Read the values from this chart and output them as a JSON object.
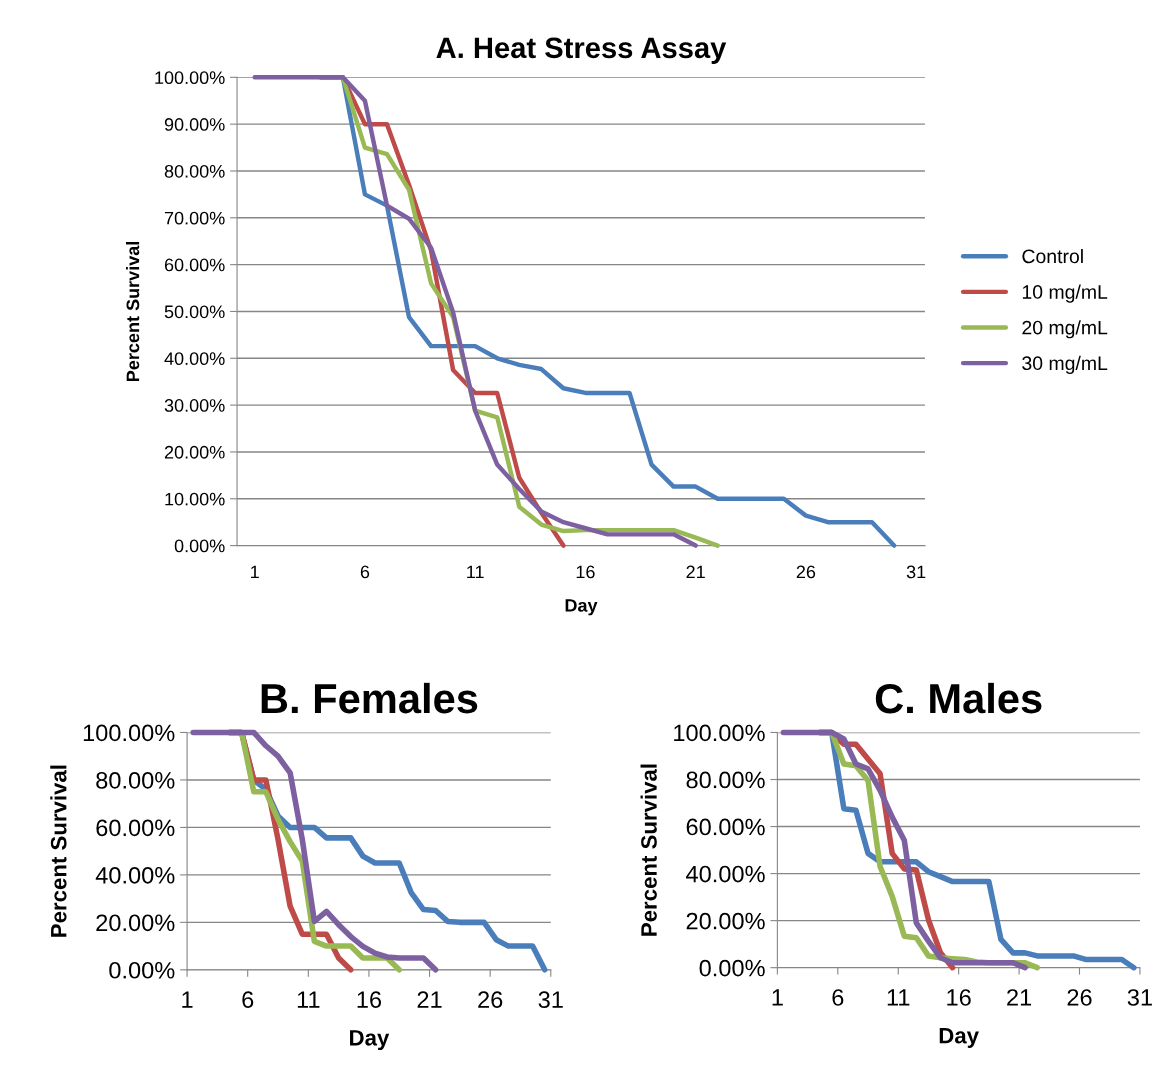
{
  "chart_data": [
    {
      "type": "line",
      "title": "A. Heat Stress Assay",
      "xlabel": "Day",
      "ylabel": "Percent Survival",
      "legend": "right",
      "grid": "y",
      "marker": "none",
      "line_style": "solid",
      "xlim": [
        0.2,
        31.4
      ],
      "xticks": [
        1,
        6,
        11,
        16,
        21,
        26,
        31
      ],
      "ylim": [
        0,
        100
      ],
      "yticks": [
        {
          "value": 0,
          "label": "0.00%"
        },
        {
          "value": 10,
          "label": "10.00%"
        },
        {
          "value": 20,
          "label": "20.00%"
        },
        {
          "value": 30,
          "label": "30.00%"
        },
        {
          "value": 40,
          "label": "40.00%"
        },
        {
          "value": 50,
          "label": "50.00%"
        },
        {
          "value": 60,
          "label": "60.00%"
        },
        {
          "value": 70,
          "label": "70.00%"
        },
        {
          "value": 80,
          "label": "80.00%"
        },
        {
          "value": 90,
          "label": "90.00%"
        },
        {
          "value": 100,
          "label": "100.00%"
        }
      ],
      "x": [
        1,
        2,
        3,
        4,
        5,
        6,
        7,
        8,
        9,
        10,
        11,
        12,
        13,
        14,
        15,
        16,
        17,
        18,
        19,
        20,
        21,
        22,
        23,
        24,
        25,
        26,
        27,
        28,
        29,
        30
      ],
      "series": [
        {
          "name": "Control",
          "color": "#4a7ebb",
          "values": [
            null,
            null,
            null,
            100,
            100,
            75,
            72.6,
            48.8,
            42.6,
            42.6,
            42.6,
            40,
            38.6,
            37.7,
            33.6,
            32.6,
            32.6,
            32.6,
            17.3,
            12.6,
            12.6,
            10,
            10,
            10,
            10,
            6.4,
            5,
            5,
            5,
            0
          ]
        },
        {
          "name": "10 mg/mL",
          "color": "#be4b48",
          "values": [
            null,
            null,
            null,
            100,
            100,
            90,
            90,
            77,
            63,
            37.5,
            32.6,
            32.6,
            14.5,
            7,
            0,
            null,
            null,
            null,
            null,
            null,
            null,
            null,
            null,
            null,
            null,
            null,
            null,
            null,
            null,
            null
          ]
        },
        {
          "name": "20 mg/mL",
          "color": "#98b954",
          "values": [
            null,
            null,
            null,
            100,
            100,
            85,
            83.6,
            76,
            56,
            48.8,
            28.8,
            27.4,
            8.3,
            4.5,
            3.1,
            3.3,
            3.3,
            3.3,
            3.3,
            3.3,
            1.7,
            0,
            null,
            null,
            null,
            null,
            null,
            null,
            null,
            null
          ]
        },
        {
          "name": "30 mg/mL",
          "color": "#7d60a0",
          "values": [
            100,
            100,
            100,
            100,
            100,
            95,
            72.6,
            69.8,
            63.6,
            49.8,
            28.8,
            17.3,
            12.1,
            7.3,
            5,
            3.7,
            2.4,
            2.4,
            2.4,
            2.4,
            0,
            null,
            null,
            null,
            null,
            null,
            null,
            null,
            null,
            null
          ]
        }
      ]
    },
    {
      "type": "line",
      "title": "B. Females",
      "xlabel": "Day",
      "ylabel": "Percent Survival",
      "grid": "y",
      "marker": "none",
      "line_style": "solid",
      "xlim": [
        1,
        31
      ],
      "xticks": [
        1,
        6,
        11,
        16,
        21,
        26,
        31
      ],
      "ylim": [
        0,
        100
      ],
      "yticks": [
        {
          "value": 0,
          "label": "0.00%"
        },
        {
          "value": 20,
          "label": "20.00%"
        },
        {
          "value": 40,
          "label": "40.00%"
        },
        {
          "value": 60,
          "label": "60.00%"
        },
        {
          "value": 80,
          "label": "80.00%"
        },
        {
          "value": 100,
          "label": "100.00%"
        }
      ],
      "x": [
        1.5,
        2.5,
        3.5,
        4.5,
        5.5,
        6.5,
        7.5,
        8.5,
        9.5,
        10.5,
        11.5,
        12.5,
        13.5,
        14.5,
        15.5,
        16.5,
        17.5,
        18.5,
        19.5,
        20.5,
        21.5,
        22.5,
        23.5,
        24.5,
        25.5,
        26.5,
        27.5,
        28.5,
        29.5,
        30.5
      ],
      "series": [
        {
          "color": "#4a7ebb",
          "values": [
            null,
            null,
            null,
            100,
            100,
            80,
            76,
            64.8,
            60,
            60,
            60,
            55.6,
            55.6,
            55.6,
            47.9,
            45,
            45,
            45,
            32.4,
            25.4,
            25,
            20.4,
            20,
            20,
            20,
            12.7,
            10,
            10,
            10,
            0
          ]
        },
        {
          "color": "#be4b48",
          "values": [
            null,
            null,
            null,
            100,
            100,
            80,
            80,
            55,
            26.8,
            15,
            15,
            15,
            5,
            0,
            null,
            null,
            null,
            null,
            null,
            null,
            null,
            null,
            null,
            null,
            null,
            null,
            null,
            null,
            null,
            null
          ]
        },
        {
          "color": "#98b954",
          "values": [
            null,
            null,
            null,
            100,
            100,
            75,
            75,
            63.4,
            54,
            45.8,
            12,
            10,
            10,
            10,
            5,
            5,
            5,
            0,
            null,
            null,
            null,
            null,
            null,
            null,
            null,
            null,
            null,
            null,
            null,
            null
          ]
        },
        {
          "color": "#7d60a0",
          "values": [
            100,
            100,
            100,
            100,
            100,
            100,
            94.4,
            90,
            83,
            55,
            20.4,
            24.6,
            19,
            14,
            9.9,
            7,
            5.4,
            5,
            5,
            5,
            0,
            null,
            null,
            null,
            null,
            null,
            null,
            null,
            null,
            null
          ]
        }
      ]
    },
    {
      "type": "line",
      "title": "C. Males",
      "xlabel": "Day",
      "ylabel": "Percent Survival",
      "grid": "y",
      "marker": "none",
      "line_style": "solid",
      "xlim": [
        1,
        31
      ],
      "xticks": [
        1,
        6,
        11,
        16,
        21,
        26,
        31
      ],
      "ylim": [
        0,
        100
      ],
      "yticks": [
        {
          "value": 0,
          "label": "0.00%"
        },
        {
          "value": 20,
          "label": "20.00%"
        },
        {
          "value": 40,
          "label": "40.00%"
        },
        {
          "value": 60,
          "label": "60.00%"
        },
        {
          "value": 80,
          "label": "80.00%"
        },
        {
          "value": 100,
          "label": "100.00%"
        }
      ],
      "x": [
        1.5,
        2.5,
        3.5,
        4.5,
        5.5,
        6.5,
        7.5,
        8.5,
        9.5,
        10.5,
        11.5,
        12.5,
        13.5,
        14.5,
        15.5,
        16.5,
        17.5,
        18.5,
        19.5,
        20.5,
        21.5,
        22.5,
        23.5,
        24.5,
        25.5,
        26.5,
        27.5,
        28.5,
        29.5,
        30.5
      ],
      "series": [
        {
          "color": "#4a7ebb",
          "values": [
            null,
            null,
            null,
            100,
            100,
            67.6,
            66.9,
            48.6,
            45,
            45,
            45,
            45,
            40.8,
            38.7,
            36.6,
            36.6,
            36.6,
            36.6,
            12,
            6.3,
            6.3,
            5,
            5,
            5,
            5,
            3.5,
            3.5,
            3.5,
            3.5,
            0
          ]
        },
        {
          "color": "#be4b48",
          "values": [
            null,
            null,
            null,
            100,
            100,
            95,
            95,
            88.7,
            82.4,
            48.6,
            42,
            41.5,
            20.4,
            6.3,
            0,
            null,
            null,
            null,
            null,
            null,
            null,
            null,
            null,
            null,
            null,
            null,
            null,
            null,
            null,
            null
          ]
        },
        {
          "color": "#98b954",
          "values": [
            null,
            null,
            null,
            100,
            100,
            86.6,
            85.9,
            79.6,
            43,
            30.3,
            13.4,
            12.7,
            5,
            4.2,
            3.8,
            3.5,
            2.4,
            2.1,
            2.1,
            2.1,
            2.1,
            0,
            null,
            null,
            null,
            null,
            null,
            null,
            null,
            null
          ]
        },
        {
          "color": "#7d60a0",
          "values": [
            100,
            100,
            100,
            100,
            100,
            97.2,
            86.6,
            84.5,
            75.4,
            64,
            54.2,
            19,
            11.3,
            4.2,
            2.1,
            2.1,
            2.1,
            2.1,
            2.1,
            2.1,
            0,
            null,
            null,
            null,
            null,
            null,
            null,
            null,
            null,
            null
          ]
        }
      ]
    }
  ]
}
